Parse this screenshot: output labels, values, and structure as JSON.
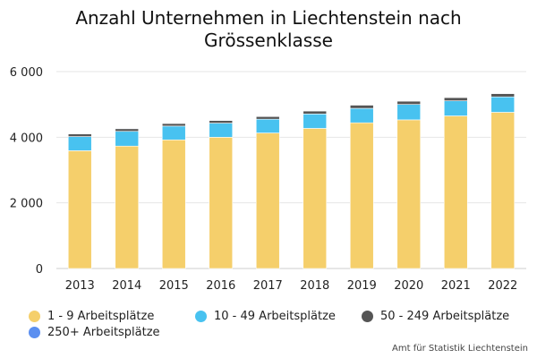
{
  "chart_data": {
    "type": "bar",
    "stacked": true,
    "title_lines": [
      "Anzahl Unternehmen in Liechtenstein nach",
      "Grössenklasse"
    ],
    "categories": [
      "2013",
      "2014",
      "2015",
      "2016",
      "2017",
      "2018",
      "2019",
      "2020",
      "2021",
      "2022"
    ],
    "series": [
      {
        "name": "1 - 9 Arbeitsplätze",
        "color": "#F5CF6B",
        "values": [
          3590,
          3730,
          3920,
          4000,
          4130,
          4270,
          4440,
          4530,
          4650,
          4760
        ]
      },
      {
        "name": "10 - 49 Arbeitsplätze",
        "color": "#48C2F0",
        "values": [
          430,
          450,
          420,
          430,
          420,
          440,
          440,
          470,
          460,
          470
        ]
      },
      {
        "name": "50 - 249 Arbeitsplätze",
        "color": "#555555",
        "values": [
          80,
          80,
          80,
          80,
          80,
          90,
          100,
          100,
          100,
          100
        ]
      },
      {
        "name": "250+ Arbeitsplätze",
        "color": "#5B8FF0",
        "values": [
          10,
          10,
          10,
          10,
          10,
          10,
          10,
          10,
          10,
          10
        ]
      }
    ],
    "y_ticks": [
      0,
      2000,
      4000,
      6000
    ],
    "y_tick_labels": [
      "0",
      "2 000",
      "4 000",
      "6 000"
    ],
    "ylim": [
      0,
      6000
    ],
    "grid": true,
    "legend_position": "bottom",
    "credits": "Amt für Statistik Liechtenstein"
  }
}
